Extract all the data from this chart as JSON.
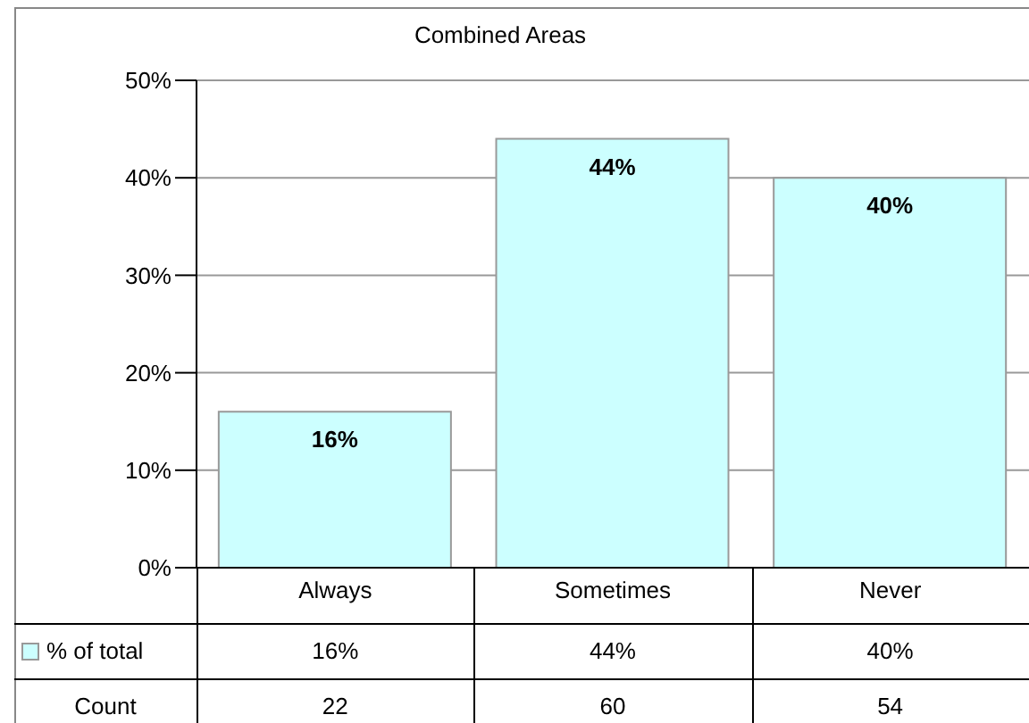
{
  "chart_data": {
    "type": "bar",
    "title": "Combined Areas",
    "categories": [
      "Always",
      "Sometimes",
      "Never"
    ],
    "series": [
      {
        "name": "% of total",
        "color": "#ccffff",
        "values": [
          16,
          44,
          40
        ],
        "value_labels": [
          "16%",
          "44%",
          "40%"
        ]
      }
    ],
    "ylim": [
      0,
      50
    ],
    "yticks": [
      {
        "value": 0,
        "label": "0%"
      },
      {
        "value": 10,
        "label": "10%"
      },
      {
        "value": 20,
        "label": "20%"
      },
      {
        "value": 30,
        "label": "30%"
      },
      {
        "value": 40,
        "label": "40%"
      },
      {
        "value": 50,
        "label": "50%"
      }
    ],
    "grid": "y",
    "annotations": [
      "Count",
      "22",
      "60",
      "54"
    ]
  }
}
